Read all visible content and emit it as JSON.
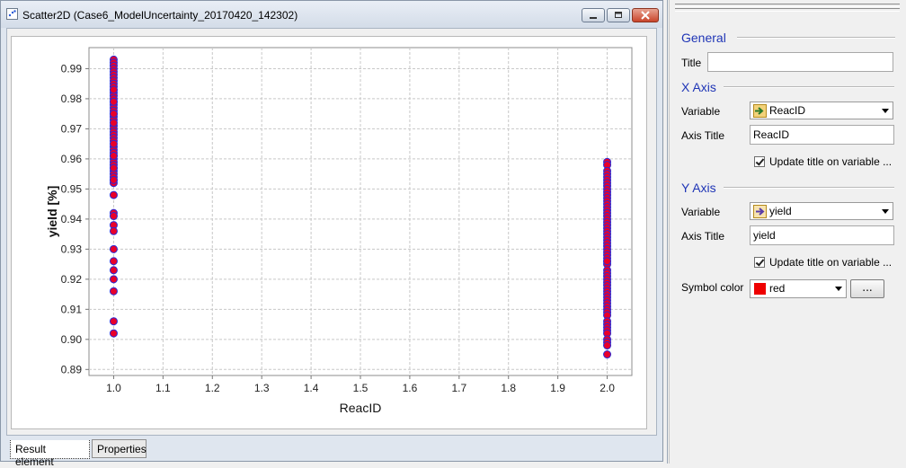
{
  "window": {
    "title": "Scatter2D  (Case6_ModelUncertainty_20170420_142302)",
    "tabs": {
      "result": "Result element",
      "properties": "Properties"
    }
  },
  "chart_data": {
    "type": "scatter",
    "title": "",
    "xlabel": "ReacID",
    "ylabel": "yield [%]",
    "xlim": [
      0.95,
      2.05
    ],
    "ylim": [
      0.888,
      0.997
    ],
    "x_ticks": [
      "1.0",
      "1.1",
      "1.2",
      "1.3",
      "1.4",
      "1.5",
      "1.6",
      "1.7",
      "1.8",
      "1.9",
      "2.0"
    ],
    "y_ticks": [
      "0.89",
      "0.90",
      "0.91",
      "0.92",
      "0.93",
      "0.94",
      "0.95",
      "0.96",
      "0.97",
      "0.98",
      "0.99"
    ],
    "grid": true,
    "marker_fill": "#e8002a",
    "marker_edge": "#2b2bd6",
    "series": [
      {
        "x": [
          1,
          1,
          1,
          1,
          1,
          1,
          1,
          1,
          1,
          1,
          1,
          1,
          1,
          1,
          1,
          1,
          1,
          1,
          1,
          1,
          1,
          1,
          1,
          1,
          1,
          1,
          1,
          1,
          1,
          1,
          1,
          1,
          1,
          1,
          1,
          1,
          1,
          1,
          1,
          1,
          1,
          1,
          1,
          1,
          1,
          1,
          1,
          1,
          1,
          1,
          1,
          1,
          1,
          1,
          1,
          1,
          1,
          1,
          1,
          1,
          2,
          2,
          2,
          2,
          2,
          2,
          2,
          2,
          2,
          2,
          2,
          2,
          2,
          2,
          2,
          2,
          2,
          2,
          2,
          2,
          2,
          2,
          2,
          2,
          2,
          2,
          2,
          2,
          2,
          2,
          2,
          2,
          2,
          2,
          2,
          2,
          2,
          2,
          2,
          2,
          2,
          2,
          2,
          2,
          2,
          2,
          2,
          2,
          2,
          2,
          2,
          2,
          2,
          2,
          2,
          2,
          2,
          2,
          2,
          2
        ],
        "y": [
          0.993,
          0.992,
          0.991,
          0.99,
          0.989,
          0.988,
          0.987,
          0.986,
          0.985,
          0.984,
          0.983,
          0.982,
          0.981,
          0.98,
          0.979,
          0.978,
          0.977,
          0.976,
          0.975,
          0.974,
          0.973,
          0.971,
          0.97,
          0.969,
          0.968,
          0.967,
          0.966,
          0.964,
          0.963,
          0.962,
          0.961,
          0.96,
          0.959,
          0.958,
          0.957,
          0.956,
          0.955,
          0.954,
          0.953,
          0.952,
          0.948,
          0.942,
          0.941,
          0.938,
          0.936,
          0.93,
          0.926,
          0.923,
          0.92,
          0.916,
          0.906,
          0.902,
          0.983,
          0.979,
          0.975,
          0.972,
          0.965,
          0.961,
          0.957,
          0.953,
          0.959,
          0.958,
          0.956,
          0.955,
          0.954,
          0.953,
          0.952,
          0.951,
          0.95,
          0.949,
          0.948,
          0.947,
          0.946,
          0.945,
          0.944,
          0.943,
          0.942,
          0.941,
          0.94,
          0.939,
          0.938,
          0.937,
          0.936,
          0.935,
          0.934,
          0.933,
          0.932,
          0.931,
          0.93,
          0.929,
          0.928,
          0.927,
          0.926,
          0.925,
          0.923,
          0.922,
          0.921,
          0.92,
          0.919,
          0.918,
          0.917,
          0.916,
          0.915,
          0.914,
          0.913,
          0.912,
          0.911,
          0.91,
          0.909,
          0.908,
          0.906,
          0.905,
          0.904,
          0.903,
          0.902,
          0.9,
          0.899,
          0.898,
          0.895,
          0.926
        ]
      }
    ]
  },
  "panel": {
    "general": {
      "heading": "General",
      "title_label": "Title",
      "title_value": ""
    },
    "x_axis": {
      "heading": "X Axis",
      "variable_label": "Variable",
      "variable_value": "ReacID",
      "variable_icon": "input-variable-icon",
      "axis_title_label": "Axis Title",
      "axis_title_value": "ReacID",
      "update_label": "Update title on variable ..."
    },
    "y_axis": {
      "heading": "Y Axis",
      "variable_label": "Variable",
      "variable_value": "yield",
      "variable_icon": "output-variable-icon",
      "axis_title_label": "Axis Title",
      "axis_title_value": "yield",
      "update_label": "Update title on variable ...",
      "symbol_color_label": "Symbol color",
      "symbol_color_value": "red",
      "symbol_color_hex": "#ee0000",
      "more_button": "..."
    }
  }
}
